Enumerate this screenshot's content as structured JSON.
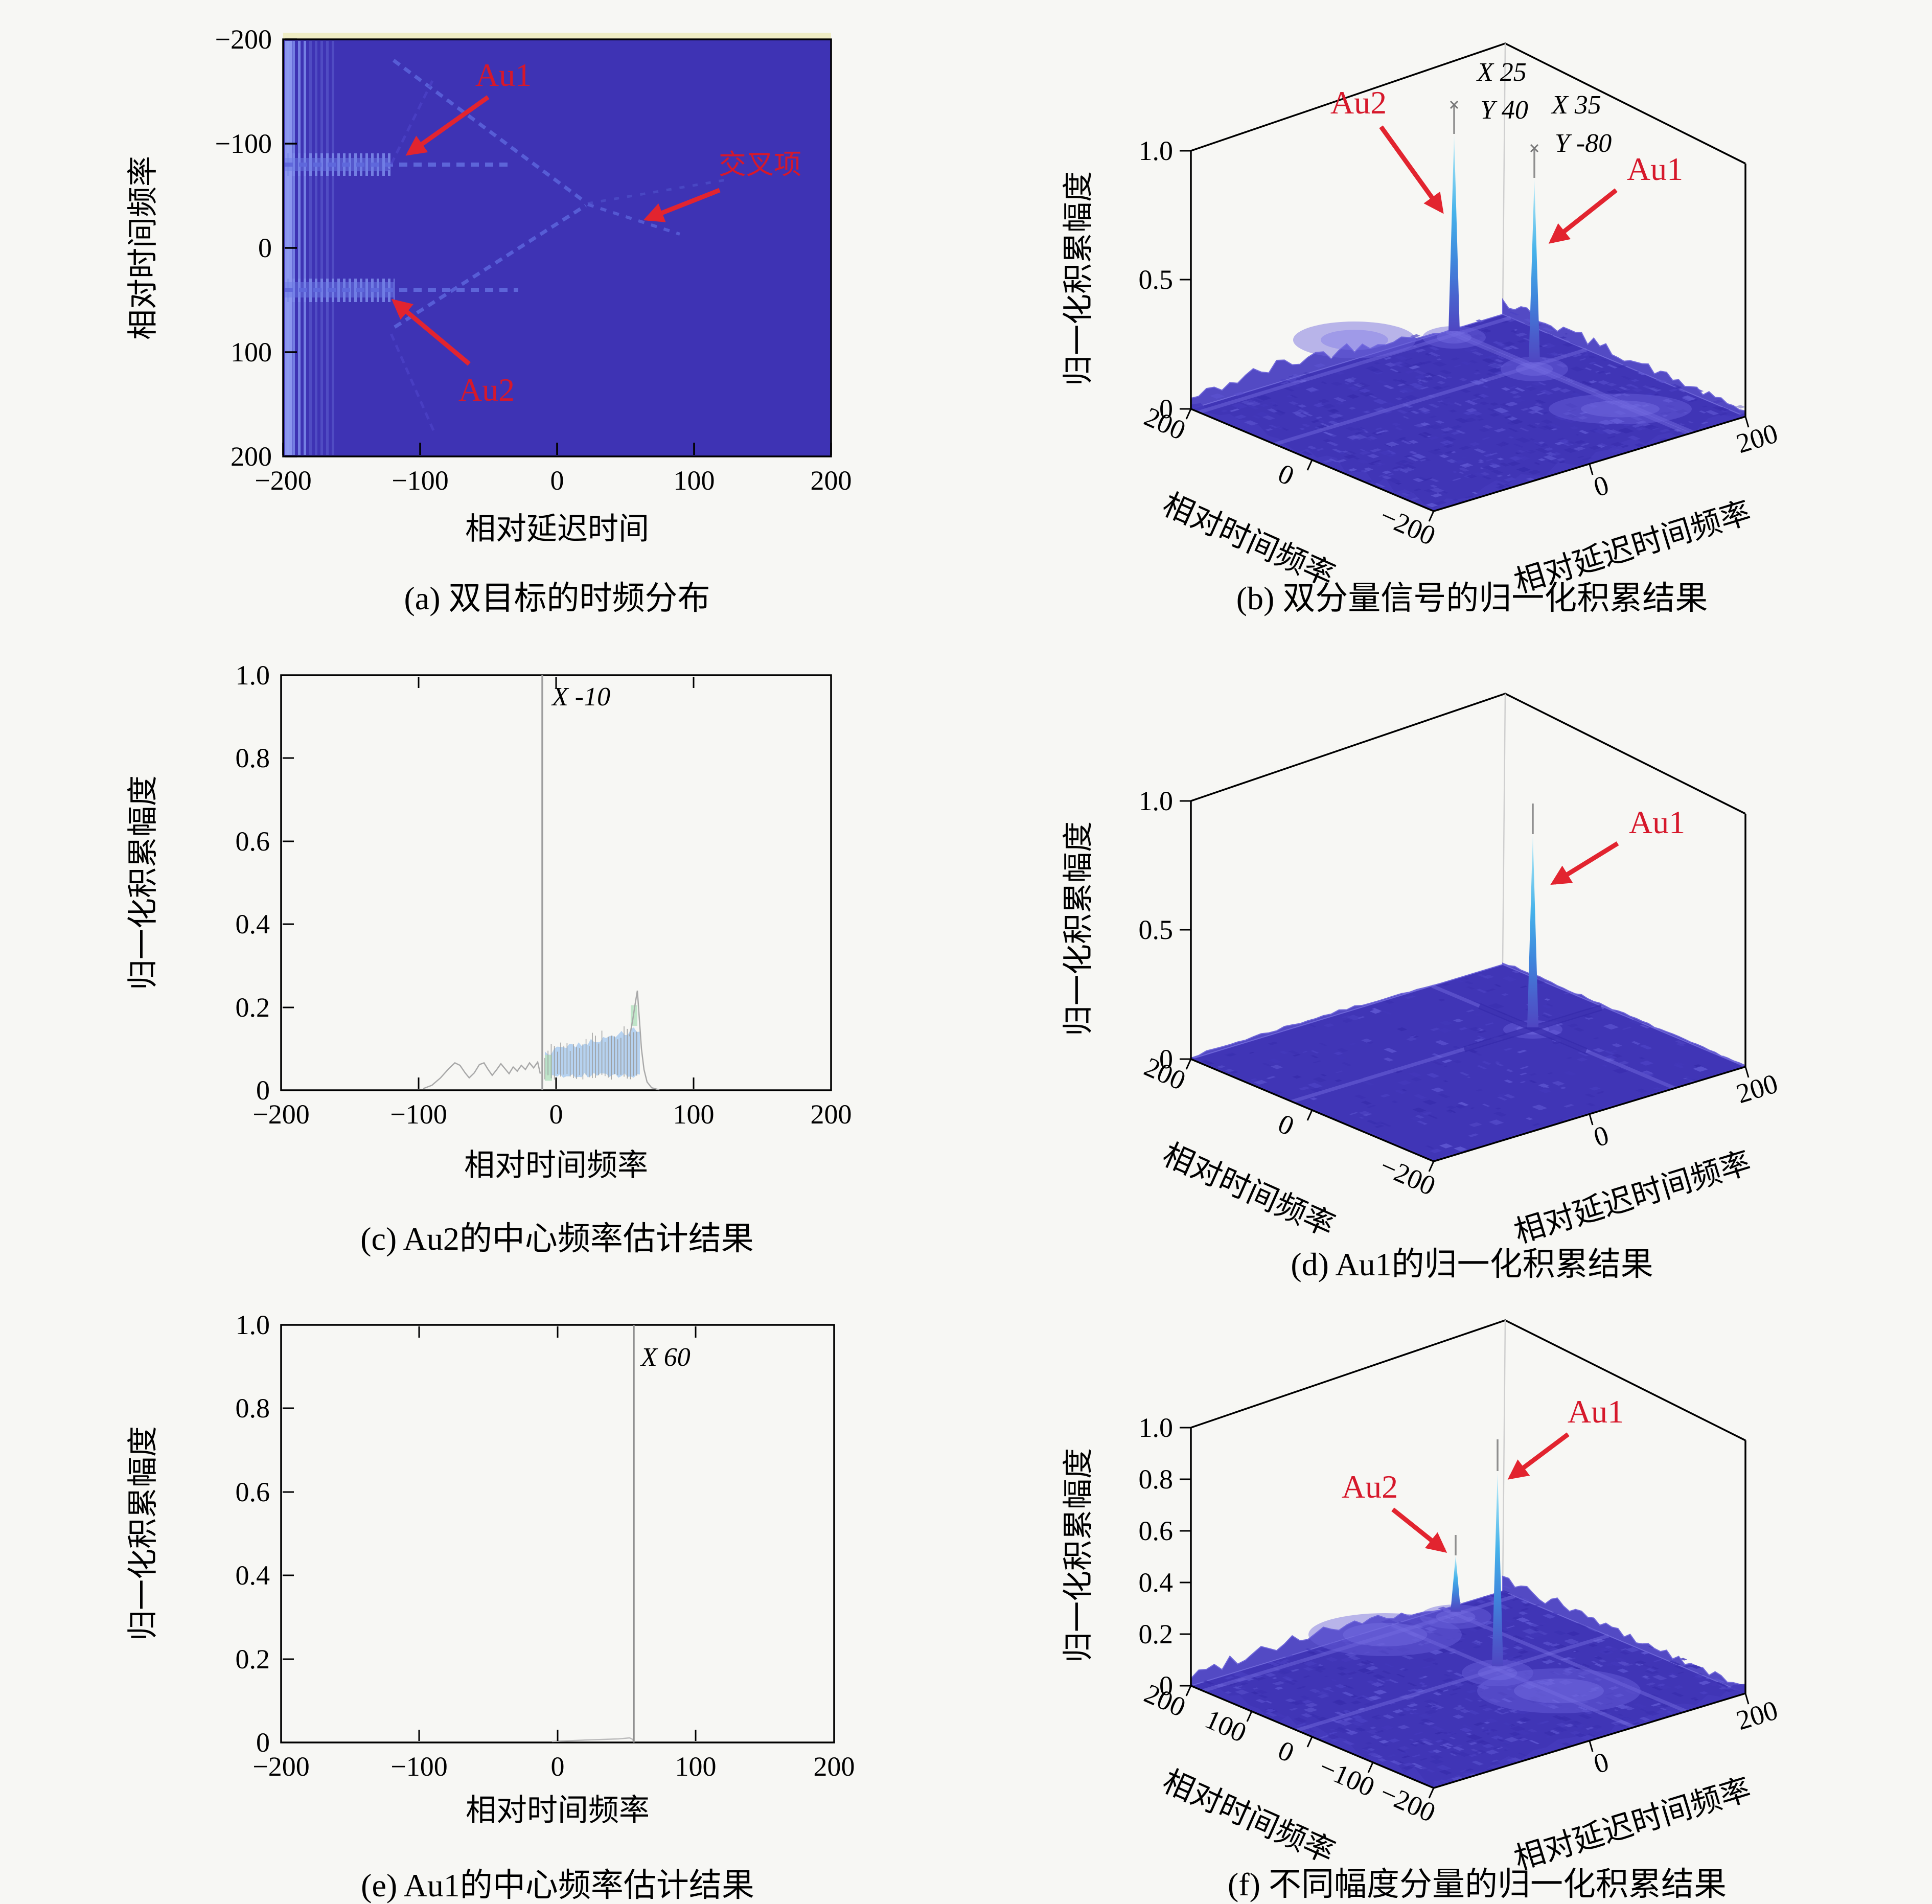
{
  "figure": {
    "background": "#f7f7f4"
  },
  "colors": {
    "annotation_red": "#d6182b",
    "arrow_red": "#e2242f",
    "heatmap_bg": "#3e33b4",
    "heatmap_trace": "#5f68dc",
    "heatmap_band": "#7d8cea",
    "floor_purple": "#4035b6",
    "floor_palette": [
      "#3a2fb0",
      "#4c42c4",
      "#5a51ce",
      "#372cac",
      "#6059d4",
      "#4338bb"
    ],
    "spike_cyan": "#45b2ea",
    "needle_gray": "#8f8f8f",
    "plot_line_gray": "#9e9e9e",
    "packet_blue": "#aecdf0",
    "packet_green": "#b9e2c4",
    "top_strip_yellow": "#efedc4"
  },
  "panels": {
    "a": {
      "caption": "(a) 双目标的时频分布",
      "xlabel": "相对延迟时间",
      "ylabel": "相对时间频率",
      "xticks": [
        "−200",
        "−100",
        "0",
        "100",
        "200"
      ],
      "yticks": [
        "−200",
        "−100",
        "0",
        "100",
        "200"
      ],
      "ann": {
        "au1": "Au1",
        "au2": "Au2",
        "cross": "交叉项"
      }
    },
    "b": {
      "caption": "(b) 双分量信号的归一化积累结果",
      "zlabel": "归一化积累幅度",
      "xlabel": "相对时间频率",
      "ylabel": "相对延迟时间频率",
      "zticks": [
        "1.0",
        "0.5",
        "0"
      ],
      "xticks": [
        "200",
        "0",
        "−200"
      ],
      "yticks": [
        "0",
        "200"
      ],
      "tip1": [
        "X 25",
        "Y 40"
      ],
      "tip2": [
        "X 35",
        "Y -80"
      ],
      "ann": {
        "au1": "Au1",
        "au2": "Au2"
      }
    },
    "c": {
      "caption": "(c) Au2的中心频率估计结果",
      "xlabel": "相对时间频率",
      "ylabel": "归一化积累幅度",
      "xticks": [
        "−200",
        "−100",
        "0",
        "100",
        "200"
      ],
      "yticks": [
        "0",
        "0.2",
        "0.4",
        "0.6",
        "0.8",
        "1.0"
      ],
      "tip": "X -10"
    },
    "d": {
      "caption": "(d) Au1的归一化积累结果",
      "zlabel": "归一化积累幅度",
      "xlabel": "相对时间频率",
      "ylabel": "相对延迟时间频率",
      "zticks": [
        "1.0",
        "0.5",
        "0"
      ],
      "xticks": [
        "200",
        "0",
        "−200"
      ],
      "yticks": [
        "0",
        "200"
      ],
      "ann": {
        "au1": "Au1"
      }
    },
    "e": {
      "caption": "(e) Au1的中心频率估计结果",
      "xlabel": "相对时间频率",
      "ylabel": "归一化积累幅度",
      "xticks": [
        "−200",
        "−100",
        "0",
        "100",
        "200"
      ],
      "yticks": [
        "0",
        "0.2",
        "0.4",
        "0.6",
        "0.8",
        "1.0"
      ],
      "tip": "X 60"
    },
    "f": {
      "caption": "(f) 不同幅度分量的归一化积累结果",
      "zlabel": "归一化积累幅度",
      "xlabel": "相对时间频率",
      "ylabel": "相对延迟时间频率",
      "zticks": [
        "1.0",
        "0.8",
        "0.6",
        "0.4",
        "0.2",
        "0"
      ],
      "xticks": [
        "200",
        "100",
        "0",
        "−100",
        "−200"
      ],
      "yticks": [
        "0",
        "200"
      ],
      "ann": {
        "au1": "Au1",
        "au2": "Au2"
      }
    }
  },
  "chart_data": [
    {
      "id": "a",
      "type": "heatmap",
      "title": "(a) 双目标的时频分布",
      "xlabel": "相对延迟时间",
      "ylabel": "相对时间频率",
      "xlim": [
        -200,
        200
      ],
      "ylim": [
        -200,
        200
      ],
      "y_axis": "reversed",
      "grid": false,
      "features": [
        {
          "name": "Au1",
          "desc": "horizontal dashed ridge",
          "y": -80,
          "x_range": [
            -200,
            -20
          ]
        },
        {
          "name": "Au2",
          "desc": "horizontal dashed ridge",
          "y": 40,
          "x_range": [
            -200,
            -25
          ]
        },
        {
          "name": "交叉项",
          "desc": "cross-term, two oblique dashed ridges converging",
          "at": [
            60,
            25
          ]
        },
        {
          "name": "edge band",
          "desc": "bright vertical striation band near x = -200"
        }
      ],
      "annotations": [
        {
          "label": "Au1",
          "points_to": [
            -115,
            -80
          ]
        },
        {
          "label": "Au2",
          "points_to": [
            -120,
            45
          ]
        },
        {
          "label": "交叉项",
          "points_to": [
            60,
            25
          ]
        }
      ]
    },
    {
      "id": "b",
      "type": "surface3d",
      "title": "(b) 双分量信号的归一化积累结果",
      "zlabel": "归一化积累幅度",
      "xlabel": "相对时间频率",
      "ylabel": "相对延迟时间频率",
      "xlim": [
        -200,
        200
      ],
      "ylim": [
        -200,
        200
      ],
      "zlim": [
        0,
        1
      ],
      "zticks": [
        0,
        0.5,
        1.0
      ],
      "xticks": [
        200,
        0,
        -200
      ],
      "yticks": [
        0,
        200
      ],
      "peaks": [
        {
          "label": "Au2",
          "X": 25,
          "Y": 40,
          "amplitude": 1.0
        },
        {
          "label": "Au1",
          "X": 35,
          "Y": -80,
          "amplitude": 0.95
        }
      ],
      "noise_floor_amplitude": 0.1
    },
    {
      "id": "c",
      "type": "line",
      "title": "(c) Au2的中心频率估计结果",
      "xlabel": "相对时间频率",
      "ylabel": "归一化积累幅度",
      "xlim": [
        -200,
        200
      ],
      "ylim": [
        0,
        1
      ],
      "peak": {
        "x": -10,
        "amplitude": 1.0
      },
      "datatip": "X -10",
      "sidelobes": {
        "x_range": [
          -90,
          70
        ],
        "typical_amplitude": 0.1,
        "max_amplitude": 0.24
      }
    },
    {
      "id": "d",
      "type": "surface3d",
      "title": "(d) Au1的归一化积累结果",
      "zlabel": "归一化积累幅度",
      "xlabel": "相对时间频率",
      "ylabel": "相对延迟时间频率",
      "xlim": [
        -200,
        200
      ],
      "ylim": [
        -200,
        200
      ],
      "zlim": [
        0,
        1
      ],
      "zticks": [
        0,
        0.5,
        1.0
      ],
      "xticks": [
        200,
        0,
        -200
      ],
      "yticks": [
        0,
        200
      ],
      "peaks": [
        {
          "label": "Au1",
          "amplitude": 0.95
        }
      ],
      "noise_floor_amplitude": 0.01
    },
    {
      "id": "e",
      "type": "line",
      "title": "(e) Au1的中心频率估计结果",
      "xlabel": "相对时间频率",
      "ylabel": "归一化积累幅度",
      "xlim": [
        -200,
        200
      ],
      "ylim": [
        0,
        1
      ],
      "peak": {
        "x": 60,
        "amplitude": 1.0
      },
      "datatip": "X 60",
      "sidelobes": {
        "x_range": [
          0,
          58
        ],
        "typical_amplitude": 0.01
      }
    },
    {
      "id": "f",
      "type": "surface3d",
      "title": "(f) 不同幅度分量的归一化积累结果",
      "zlabel": "归一化积累幅度",
      "xlabel": "相对时间频率",
      "ylabel": "相对延迟时间频率",
      "xlim": [
        -200,
        200
      ],
      "ylim": [
        -200,
        200
      ],
      "zlim": [
        0,
        1
      ],
      "zticks": [
        0,
        0.2,
        0.4,
        0.6,
        0.8,
        1.0
      ],
      "xticks": [
        200,
        100,
        0,
        -100,
        -200
      ],
      "yticks": [
        0,
        200
      ],
      "peaks": [
        {
          "label": "Au2",
          "amplitude": 0.45
        },
        {
          "label": "Au1",
          "amplitude": 0.95
        }
      ],
      "noise_floor_amplitude": 0.1
    }
  ]
}
